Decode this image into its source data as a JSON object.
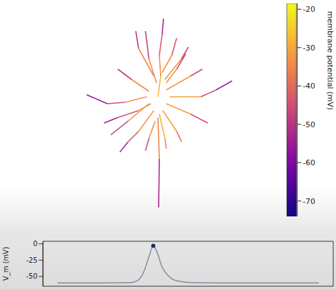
{
  "chart_data": [
    {
      "type": "line",
      "tick_labels": false,
      "xlim": [
        -170,
        170
      ],
      "ylim": [
        -190,
        140
      ],
      "series": [
        {
          "x": [
            0,
            4,
            2,
            6,
            8
          ],
          "values": [
            0,
            30,
            60,
            90,
            113
          ],
          "potential": [
            -24,
            -30,
            -38,
            -48,
            -58
          ]
        },
        {
          "x": [
            -2,
            -13,
            -18
          ],
          "values": [
            20,
            55,
            95
          ],
          "potential": [
            -27,
            -40,
            -55
          ]
        },
        {
          "x": [
            -6,
            -28,
            -32
          ],
          "values": [
            30,
            70,
            95
          ],
          "potential": [
            -28,
            -42,
            -56
          ]
        },
        {
          "x": [
            6,
            20,
            27
          ],
          "values": [
            35,
            60,
            85
          ],
          "potential": [
            -28,
            -38,
            -50
          ]
        },
        {
          "x": [
            10,
            34,
            44
          ],
          "values": [
            25,
            55,
            72
          ],
          "potential": [
            -26,
            -40,
            -52
          ]
        },
        {
          "x": [
            12,
            47,
            64
          ],
          "values": [
            10,
            30,
            40
          ],
          "potential": [
            -25,
            -40,
            -52
          ]
        },
        {
          "x": [
            17,
            62,
            84,
            107
          ],
          "values": [
            0,
            0,
            10,
            23
          ],
          "potential": [
            -24,
            -38,
            -50,
            -60
          ]
        },
        {
          "x": [
            12,
            47,
            72
          ],
          "values": [
            -10,
            -25,
            -38
          ],
          "potential": [
            -25,
            -38,
            -52
          ]
        },
        {
          "x": [
            7,
            27,
            34
          ],
          "values": [
            -20,
            -50,
            -65
          ],
          "potential": [
            -26,
            -36,
            -45
          ]
        },
        {
          "x": [
            2,
            10,
            12
          ],
          "values": [
            -25,
            -60,
            -75
          ],
          "potential": [
            -25,
            -32,
            -40
          ]
        },
        {
          "x": [
            0,
            2,
            1
          ],
          "values": [
            -30,
            -90,
            -160
          ],
          "potential": [
            -26,
            -45,
            -60
          ]
        },
        {
          "x": [
            -6,
            -28,
            -43,
            -55
          ],
          "values": [
            -20,
            -50,
            -65,
            -80
          ],
          "potential": [
            -25,
            -38,
            -48,
            -58
          ]
        },
        {
          "x": [
            -13,
            -43,
            -68
          ],
          "values": [
            -10,
            -35,
            -55
          ],
          "potential": [
            -26,
            -42,
            -56
          ]
        },
        {
          "x": [
            -16,
            -48,
            -73,
            -103
          ],
          "values": [
            0,
            -8,
            -10,
            3
          ],
          "potential": [
            -25,
            -40,
            -50,
            -60
          ]
        },
        {
          "x": [
            -13,
            -38,
            -58
          ],
          "values": [
            8,
            25,
            40
          ],
          "potential": [
            -27,
            -42,
            -55
          ]
        },
        {
          "x": [
            -10,
            -28,
            -58,
            -78
          ],
          "values": [
            -10,
            -20,
            -30,
            -38
          ],
          "potential": [
            -26,
            -38,
            -50,
            -58
          ]
        },
        {
          "x": [
            12,
            27,
            40
          ],
          "values": [
            20,
            40,
            62
          ],
          "potential": [
            -28,
            -40,
            -52
          ]
        },
        {
          "x": [
            -4,
            -13,
            -18
          ],
          "values": [
            -35,
            -60,
            -78
          ],
          "potential": [
            -28,
            -40,
            -50
          ]
        }
      ],
      "colorbar": {
        "label": "membrane potential (mV)",
        "lim": [
          -74,
          -18.5
        ],
        "ticks": [
          -20,
          -30,
          -40,
          -50,
          -60,
          -70
        ]
      }
    },
    {
      "type": "line",
      "y_label": "V_m (mV)",
      "tick_labels": "y",
      "color": "#7f8fa0",
      "xlim": [
        0,
        100
      ],
      "ylim": [
        -65,
        4
      ],
      "yticks": [
        0,
        -25,
        -50
      ],
      "x": [
        5,
        20,
        30,
        33,
        35,
        36.5,
        38,
        39.5,
        41,
        43,
        45,
        48,
        52,
        60,
        75,
        95
      ],
      "values": [
        -60,
        -60,
        -59.5,
        -55,
        -40,
        -20,
        -3,
        -15,
        -35,
        -48,
        -55,
        -58,
        -59.5,
        -60,
        -60,
        -60
      ],
      "highlight": {
        "x": 38,
        "value": -3
      }
    }
  ]
}
